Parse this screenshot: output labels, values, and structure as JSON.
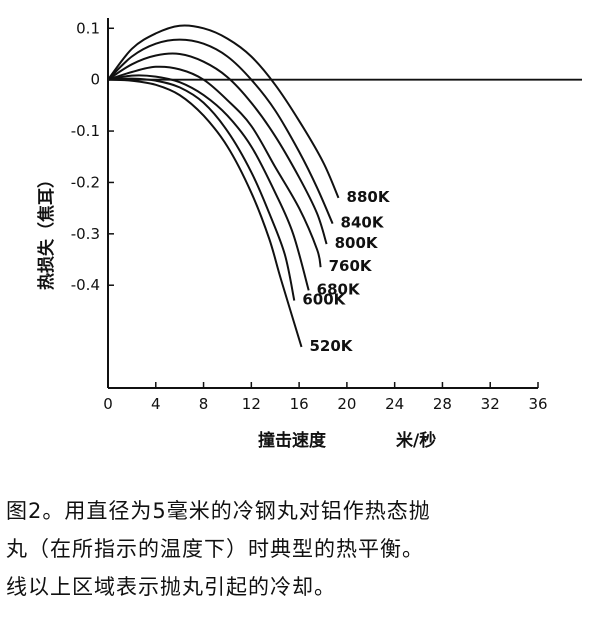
{
  "chart_data": {
    "type": "line",
    "xlabel": "撞击速度",
    "xunit": "米/秒",
    "ylabel": "热损失（焦耳）",
    "xlim": [
      0,
      36
    ],
    "ylim": [
      -0.6,
      0.12
    ],
    "x_ticks": [
      0,
      4,
      8,
      12,
      16,
      20,
      24,
      28,
      32,
      36
    ],
    "y_ticks": [
      {
        "value": 0.1,
        "label": "0.1"
      },
      {
        "value": 0,
        "label": "0"
      },
      {
        "value": -0.1,
        "label": "-0.1"
      },
      {
        "value": -0.2,
        "label": "-0.2"
      },
      {
        "value": -0.3,
        "label": "-0.3"
      },
      {
        "value": -0.4,
        "label": "-0.4"
      }
    ],
    "zero_line": true,
    "grid": false,
    "series": [
      {
        "name": "880K",
        "points": [
          [
            0,
            0
          ],
          [
            2,
            0.06
          ],
          [
            4,
            0.09
          ],
          [
            6,
            0.105
          ],
          [
            8,
            0.1
          ],
          [
            10,
            0.08
          ],
          [
            12,
            0.045
          ],
          [
            14,
            -0.01
          ],
          [
            16,
            -0.08
          ],
          [
            18,
            -0.16
          ],
          [
            19.3,
            -0.23
          ]
        ]
      },
      {
        "name": "840K",
        "points": [
          [
            0,
            0
          ],
          [
            2,
            0.045
          ],
          [
            4,
            0.07
          ],
          [
            6,
            0.078
          ],
          [
            8,
            0.07
          ],
          [
            10,
            0.045
          ],
          [
            12,
            0.0
          ],
          [
            14,
            -0.06
          ],
          [
            16,
            -0.14
          ],
          [
            17.5,
            -0.21
          ],
          [
            18.8,
            -0.28
          ]
        ]
      },
      {
        "name": "800K",
        "points": [
          [
            0,
            0
          ],
          [
            2,
            0.03
          ],
          [
            4,
            0.047
          ],
          [
            6,
            0.05
          ],
          [
            8,
            0.035
          ],
          [
            10,
            0.005
          ],
          [
            12,
            -0.045
          ],
          [
            14,
            -0.11
          ],
          [
            16,
            -0.19
          ],
          [
            17.5,
            -0.26
          ],
          [
            18.3,
            -0.32
          ]
        ]
      },
      {
        "name": "760K",
        "points": [
          [
            0,
            0
          ],
          [
            2,
            0.015
          ],
          [
            4,
            0.025
          ],
          [
            6,
            0.02
          ],
          [
            8,
            0.0
          ],
          [
            10,
            -0.04
          ],
          [
            12,
            -0.09
          ],
          [
            14,
            -0.17
          ],
          [
            16,
            -0.25
          ],
          [
            17.5,
            -0.33
          ],
          [
            17.8,
            -0.365
          ]
        ]
      },
      {
        "name": "680K",
        "points": [
          [
            0,
            0
          ],
          [
            2,
            0.008
          ],
          [
            4,
            0.006
          ],
          [
            6,
            -0.005
          ],
          [
            8,
            -0.03
          ],
          [
            10,
            -0.07
          ],
          [
            12,
            -0.13
          ],
          [
            14,
            -0.22
          ],
          [
            15.5,
            -0.3
          ],
          [
            16.8,
            -0.41
          ]
        ]
      },
      {
        "name": "600K",
        "points": [
          [
            0,
            0
          ],
          [
            2,
            0.002
          ],
          [
            4,
            -0.002
          ],
          [
            6,
            -0.015
          ],
          [
            8,
            -0.045
          ],
          [
            10,
            -0.1
          ],
          [
            12,
            -0.18
          ],
          [
            13.5,
            -0.26
          ],
          [
            14.8,
            -0.34
          ],
          [
            15.6,
            -0.43
          ]
        ]
      },
      {
        "name": "520K",
        "points": [
          [
            0,
            0
          ],
          [
            2,
            -0.002
          ],
          [
            4,
            -0.01
          ],
          [
            6,
            -0.03
          ],
          [
            8,
            -0.07
          ],
          [
            10,
            -0.13
          ],
          [
            12,
            -0.22
          ],
          [
            13.5,
            -0.31
          ],
          [
            14.5,
            -0.39
          ],
          [
            16.2,
            -0.52
          ]
        ]
      }
    ]
  },
  "caption": {
    "lines": [
      "图2。用直径为5毫米的冷钢丸对铝作热态抛",
      "丸（在所指示的温度下）时典型的热平衡。",
      "线以上区域表示抛丸引起的冷却。"
    ]
  }
}
